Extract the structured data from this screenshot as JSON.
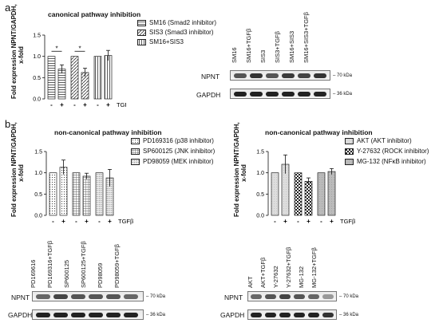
{
  "panel_a": {
    "letter": "a",
    "title": "canonical pathway inhibition",
    "ylabel_line1": "Fold expression NPNT/GAPDH,",
    "ylabel_line2": "x-fold",
    "legend": [
      {
        "label": "SM16 (Smad2 inhibitor)",
        "pattern": "hatch"
      },
      {
        "label": "SIS3 (Smad3 inhibitor)",
        "pattern": "diag"
      },
      {
        "label": "SM16+SIS3",
        "pattern": "vert"
      }
    ],
    "treatment_marks": [
      "-",
      "+",
      "-",
      "+",
      "-",
      "+"
    ],
    "treatment_label": "TGFβ",
    "significance": [
      "*",
      "*"
    ],
    "blot": {
      "lanes": [
        "SM16",
        "SM16+TGFβ",
        "SIS3",
        "SIS3+TGFβ",
        "SM16+SIS3",
        "SM16+SIS3+TGFβ"
      ],
      "rows": [
        {
          "protein": "NPNT",
          "marker": "– 70 kDa"
        },
        {
          "protein": "GAPDH",
          "marker": "– 36 kDa"
        }
      ]
    }
  },
  "panel_b": {
    "letter": "b",
    "left": {
      "title": "non-canonical pathway inhibition",
      "ylabel_line1": "Fold expression NPNT/GAPDH,",
      "ylabel_line2": "x-fold",
      "legend": [
        {
          "label": "PD169316 (p38 inhibitor)",
          "pattern": "dots"
        },
        {
          "label": "SP600125 (JNK inhibitor)",
          "pattern": "grid"
        },
        {
          "label": "PD98059 (MEK inhibitor)",
          "pattern": "dots2"
        }
      ],
      "treatment_marks": [
        "-",
        "+",
        "-",
        "+",
        "-",
        "+"
      ],
      "treatment_label": "TGFβ",
      "blot": {
        "lanes": [
          "PD169616",
          "PD169316+TGFβ",
          "SP600125",
          "SP600125+TGFβ",
          "PD98059",
          "PD98059+TGFβ"
        ],
        "rows": [
          {
            "protein": "NPNT",
            "marker": "– 70 kDa"
          },
          {
            "protein": "GAPDH",
            "marker": "– 36 kDa"
          }
        ]
      }
    },
    "right": {
      "title": "non-canonical pathway inhibition",
      "ylabel_line1": "Fold expression NPNT/GAPDH,",
      "ylabel_line2": "x-fold",
      "legend": [
        {
          "label": "AKT (AKT inhibitor)",
          "pattern": "light"
        },
        {
          "label": "Y-27632 (ROCK inhibitor)",
          "pattern": "check"
        },
        {
          "label": "MG-132 (NFκB inhibitor)",
          "pattern": "grey"
        }
      ],
      "treatment_marks": [
        "-",
        "+",
        "-",
        "+",
        "-",
        "+"
      ],
      "treatment_label": "TGFβ",
      "blot": {
        "lanes": [
          "AKT",
          "AKT+TGFβ",
          "Y-27632",
          "Y-27632+TGFβ",
          "MG-132",
          "MG-132+TGFβ"
        ],
        "rows": [
          {
            "protein": "NPNT",
            "marker": "– 70 kDa"
          },
          {
            "protein": "GAPDH",
            "marker": "– 36 kDa"
          }
        ]
      }
    }
  },
  "chart_data": [
    {
      "type": "bar",
      "categories": [
        "-",
        "+",
        "-",
        "+",
        "-",
        "+"
      ],
      "values": [
        1.0,
        0.7,
        1.0,
        0.62,
        1.0,
        1.02
      ],
      "errors": [
        0,
        0.1,
        0,
        0.1,
        0,
        0.12
      ],
      "ylim": [
        0,
        1.5
      ],
      "yticks": [
        "0.0",
        "0.5",
        "1.0",
        "1.5"
      ],
      "patterns": [
        "hatch",
        "hatch",
        "diag",
        "diag",
        "vert",
        "vert"
      ]
    },
    {
      "type": "bar",
      "categories": [
        "-",
        "+",
        "-",
        "+",
        "-",
        "+"
      ],
      "values": [
        1.0,
        1.13,
        1.0,
        0.92,
        1.0,
        0.88
      ],
      "errors": [
        0,
        0.17,
        0,
        0.07,
        0,
        0.2
      ],
      "ylim": [
        0,
        1.5
      ],
      "yticks": [
        "0.0",
        "0.5",
        "1.0",
        "1.5"
      ],
      "patterns": [
        "dots",
        "dots",
        "grid",
        "grid",
        "dots2",
        "dots2"
      ]
    },
    {
      "type": "bar",
      "categories": [
        "-",
        "+",
        "-",
        "+",
        "-",
        "+"
      ],
      "values": [
        1.0,
        1.2,
        1.0,
        0.8,
        1.0,
        1.03
      ],
      "errors": [
        0,
        0.22,
        0,
        0.08,
        0,
        0.07
      ],
      "ylim": [
        0,
        1.5
      ],
      "yticks": [
        "0.0",
        "0.5",
        "1.0",
        "1.5"
      ],
      "patterns": [
        "light",
        "light",
        "check",
        "check",
        "grey",
        "grey"
      ]
    }
  ]
}
